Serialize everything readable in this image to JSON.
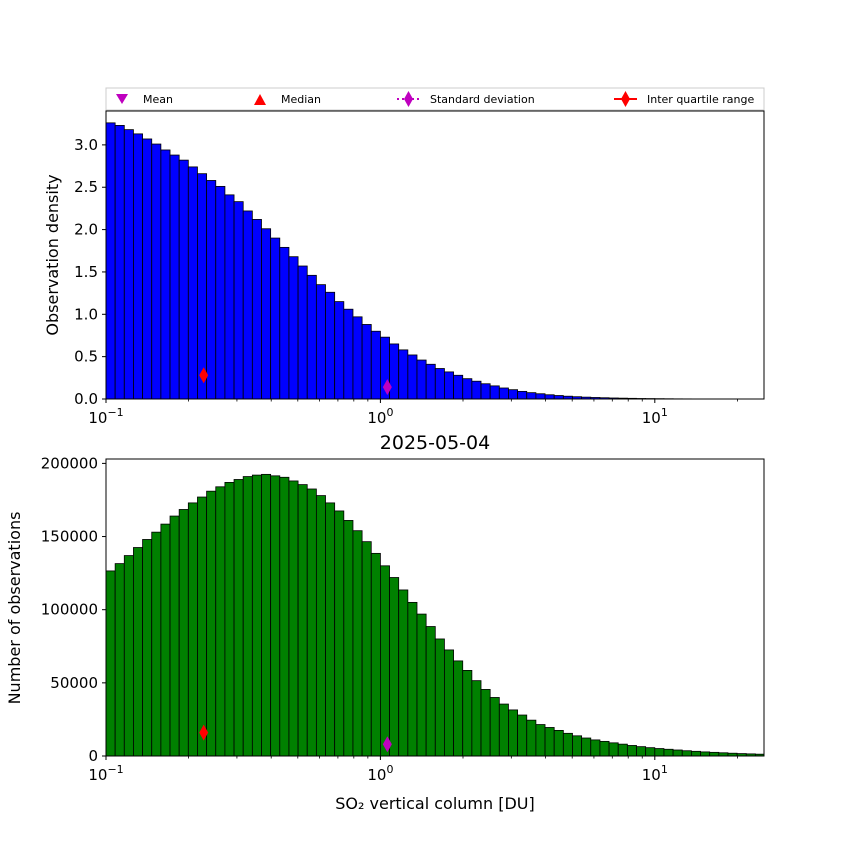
{
  "legend": {
    "mean_label": "Mean",
    "median_label": "Median",
    "std_label": "Standard deviation",
    "iqr_label": "Inter quartile range",
    "mean_color": "#bf00bf",
    "median_color": "#ff0000",
    "std_color": "#bf00bf",
    "iqr_color": "#ff0000"
  },
  "chart_data": [
    {
      "type": "bar",
      "ylabel": "Observation density",
      "xscale": "log",
      "xlim": [
        0.1,
        25
      ],
      "ylim": [
        0,
        3.4
      ],
      "yticks": [
        "0.0",
        "0.5",
        "1.0",
        "1.5",
        "2.0",
        "2.5",
        "3.0"
      ],
      "bar_color": "#0000ff",
      "x_start": 0.1,
      "bins_per_decade": 30,
      "values": [
        3.26,
        3.23,
        3.18,
        3.13,
        3.07,
        3.01,
        2.94,
        2.88,
        2.82,
        2.74,
        2.66,
        2.58,
        2.51,
        2.41,
        2.33,
        2.22,
        2.12,
        2.01,
        1.9,
        1.79,
        1.68,
        1.57,
        1.46,
        1.35,
        1.26,
        1.15,
        1.06,
        0.97,
        0.88,
        0.8,
        0.73,
        0.65,
        0.58,
        0.52,
        0.46,
        0.41,
        0.36,
        0.32,
        0.28,
        0.24,
        0.21,
        0.18,
        0.155,
        0.13,
        0.11,
        0.09,
        0.075,
        0.062,
        0.05,
        0.041,
        0.033,
        0.027,
        0.022,
        0.018,
        0.015,
        0.012,
        0.01,
        0.008,
        0.006,
        0.005,
        0.004,
        0.003,
        0.002,
        0.0015,
        0.001,
        0.0008,
        0.0006,
        0.0005,
        0.0004,
        0.0003,
        0.0002,
        0.0002,
        0.0001,
        0.0001,
        0.0001,
        0.0001,
        0.0001,
        0.0001,
        0,
        0,
        0
      ],
      "markers": {
        "iqr": {
          "x": 0.227,
          "y": 0.28
        },
        "std": {
          "x": 1.06,
          "y": 0.14
        }
      }
    },
    {
      "type": "bar",
      "title": "2025-05-04",
      "xlabel": "SO₂ vertical column [DU]",
      "ylabel": "Number of observations",
      "xscale": "log",
      "xlim": [
        0.1,
        25
      ],
      "ylim": [
        0,
        203000
      ],
      "yticks": [
        "0",
        "50000",
        "100000",
        "150000",
        "200000"
      ],
      "bar_color": "#008000",
      "x_start": 0.1,
      "bins_per_decade": 30,
      "values": [
        126500,
        131500,
        137000,
        142500,
        148000,
        153000,
        158500,
        164000,
        168500,
        173000,
        177000,
        181000,
        184000,
        187000,
        189000,
        191000,
        192000,
        192500,
        191500,
        190500,
        188000,
        185500,
        182500,
        178000,
        173000,
        167500,
        161000,
        154000,
        146500,
        138500,
        130000,
        122000,
        113500,
        105000,
        97000,
        88500,
        80000,
        72500,
        65000,
        58500,
        51500,
        45500,
        40000,
        35500,
        31500,
        28000,
        24500,
        21500,
        19500,
        17500,
        15500,
        13800,
        12300,
        11000,
        10000,
        9000,
        8100,
        7200,
        6400,
        5700,
        5100,
        4600,
        4100,
        3600,
        3200,
        2800,
        2500,
        2200,
        1900,
        1650,
        1450,
        1250,
        1050,
        900,
        750,
        600,
        450,
        350,
        250,
        150,
        80
      ],
      "markers": {
        "iqr": {
          "x": 0.227,
          "y": 16000
        },
        "std": {
          "x": 1.06,
          "y": 8000
        }
      }
    }
  ],
  "axes": {
    "xtick_base": "10",
    "xtick_exponents": [
      "−1",
      "0",
      "1"
    ]
  }
}
